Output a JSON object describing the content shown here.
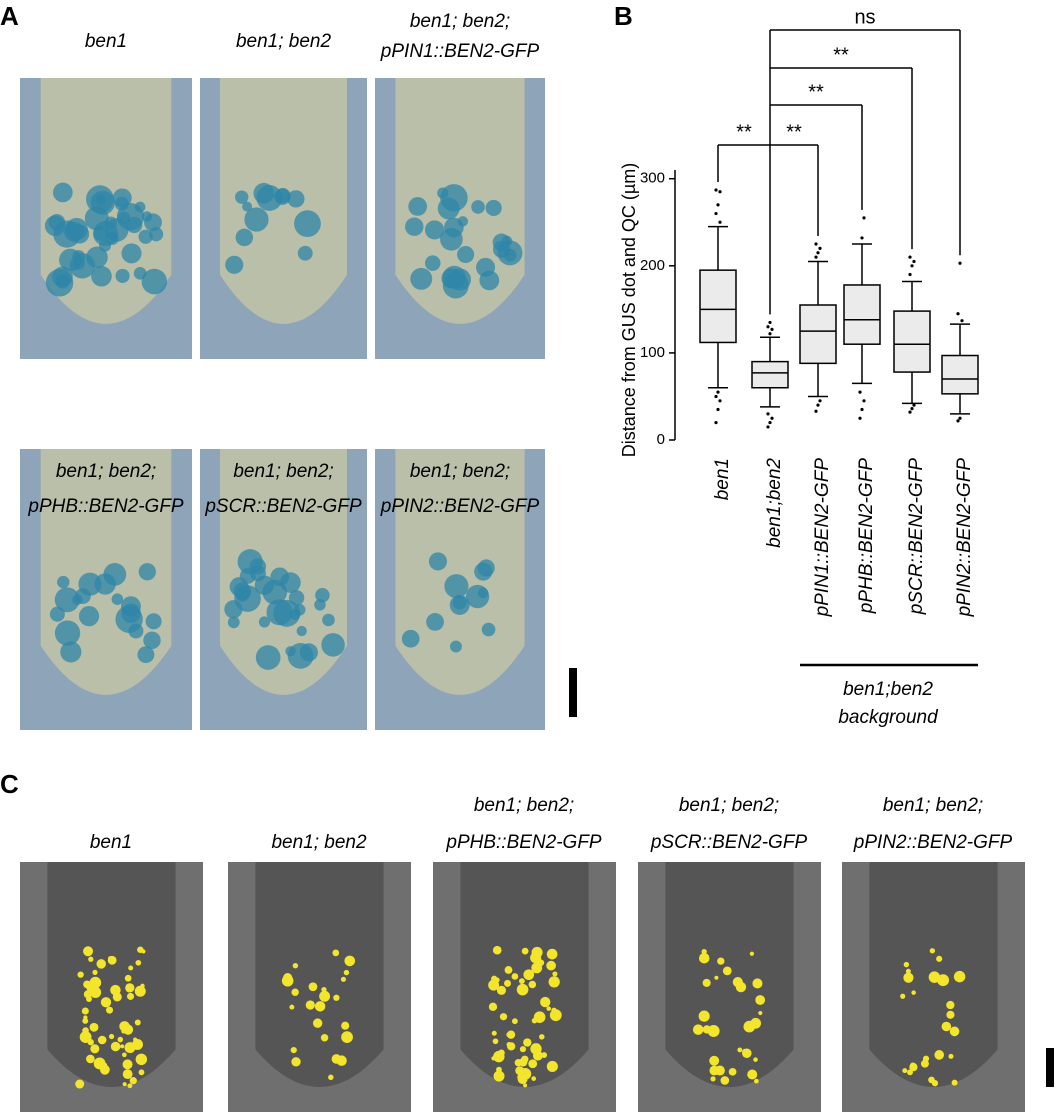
{
  "panel_a": {
    "label": "A",
    "images": [
      {
        "title_lines": [
          "ben1"
        ]
      },
      {
        "title_lines": [
          "ben1; ben2"
        ]
      },
      {
        "title_lines": [
          "ben1; ben2;",
          "pPIN1::BEN2-GFP"
        ]
      },
      {
        "title_lines": [
          "ben1; ben2;",
          "pPHB::BEN2-GFP"
        ]
      },
      {
        "title_lines": [
          "ben1; ben2;",
          "pSCR::BEN2-GFP"
        ]
      },
      {
        "title_lines": [
          "ben1; ben2;",
          "pPIN2::BEN2-GFP"
        ]
      }
    ]
  },
  "chart_data": {
    "type": "box",
    "panel_label": "B",
    "ylabel": "Distance from GUS dot and QC (µm)",
    "categories": [
      "ben1",
      "ben1;ben2",
      "pPIN1::BEN2-GFP",
      "pPHB::BEN2-GFP",
      "pSCR::BEN2-GFP",
      "pPIN2::BEN2-GFP"
    ],
    "boxes": [
      {
        "whislo": 60,
        "q1": 112,
        "med": 150,
        "q3": 195,
        "whishi": 245,
        "fliers": [
          20,
          35,
          45,
          50,
          55,
          250,
          260,
          270,
          285,
          287
        ]
      },
      {
        "whislo": 38,
        "q1": 60,
        "med": 77,
        "q3": 90,
        "whishi": 118,
        "fliers": [
          15,
          20,
          25,
          30,
          122,
          127,
          130,
          135
        ]
      },
      {
        "whislo": 50,
        "q1": 88,
        "med": 125,
        "q3": 155,
        "whishi": 205,
        "fliers": [
          33,
          40,
          45,
          210,
          215,
          220,
          225
        ]
      },
      {
        "whislo": 65,
        "q1": 110,
        "med": 138,
        "q3": 178,
        "whishi": 225,
        "fliers": [
          25,
          35,
          45,
          55,
          232,
          255
        ]
      },
      {
        "whislo": 42,
        "q1": 78,
        "med": 110,
        "q3": 148,
        "whishi": 182,
        "fliers": [
          32,
          36,
          40,
          190,
          200,
          205,
          210
        ]
      },
      {
        "whislo": 30,
        "q1": 53,
        "med": 70,
        "q3": 97,
        "whishi": 133,
        "fliers": [
          22,
          25,
          137,
          145,
          203
        ]
      }
    ],
    "significance_labels": [
      "**",
      "**",
      "**",
      "**",
      "ns"
    ],
    "group_label": [
      "ben1;ben2",
      "background"
    ],
    "ylim": [
      0,
      310
    ],
    "yticks": [
      0,
      100,
      200,
      300
    ]
  },
  "panel_c": {
    "label": "C",
    "images": [
      {
        "title_lines": [
          "ben1"
        ]
      },
      {
        "title_lines": [
          "ben1; ben2"
        ]
      },
      {
        "title_lines": [
          "ben1; ben2;",
          "pPHB::BEN2-GFP"
        ]
      },
      {
        "title_lines": [
          "ben1; ben2;",
          "pSCR::BEN2-GFP"
        ]
      },
      {
        "title_lines": [
          "ben1; ben2;",
          "pPIN2::BEN2-GFP"
        ]
      }
    ]
  }
}
